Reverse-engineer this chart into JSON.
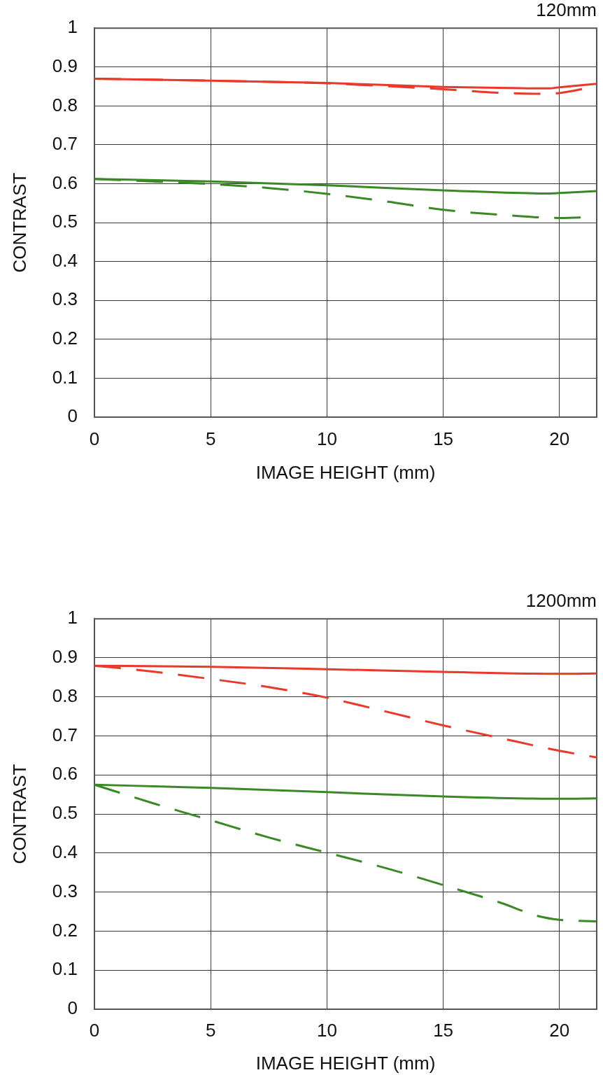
{
  "chart_data": [
    {
      "type": "line",
      "title": "120mm",
      "xlabel": "IMAGE HEIGHT (mm)",
      "ylabel": "CONTRAST",
      "xlim": [
        0,
        21.6
      ],
      "xticks": [
        0,
        5,
        10,
        15,
        20
      ],
      "ylim": [
        0,
        1
      ],
      "yticks": [
        0,
        0.1,
        0.2,
        0.3,
        0.4,
        0.5,
        0.6,
        0.7,
        0.8,
        0.9,
        1
      ],
      "grid": true,
      "marker": "none",
      "series": [
        {
          "color": "#e8392b",
          "line_style": "solid",
          "x": [
            0,
            5,
            10,
            15,
            18,
            19.5,
            20,
            21.6
          ],
          "values": [
            0.87,
            0.865,
            0.859,
            0.849,
            0.846,
            0.845,
            0.848,
            0.857
          ]
        },
        {
          "color": "#e8392b",
          "line_style": "dashed",
          "x": [
            0,
            5,
            10,
            12.5,
            15,
            17,
            19.5,
            20,
            21.6
          ],
          "values": [
            0.87,
            0.865,
            0.858,
            0.851,
            0.843,
            0.835,
            0.831,
            0.833,
            0.851
          ]
        },
        {
          "color": "#3a8826",
          "line_style": "solid",
          "x": [
            0,
            5,
            10,
            15,
            19.5,
            20,
            21.6
          ],
          "values": [
            0.612,
            0.606,
            0.596,
            0.583,
            0.575,
            0.576,
            0.581
          ]
        },
        {
          "color": "#3a8826",
          "line_style": "dashed",
          "x": [
            0,
            2.5,
            5,
            7.5,
            10,
            12.5,
            15,
            17.5,
            20,
            21.6
          ],
          "values": [
            0.612,
            0.606,
            0.599,
            0.589,
            0.574,
            0.555,
            0.533,
            0.52,
            0.512,
            0.515
          ]
        }
      ]
    },
    {
      "type": "line",
      "title": "1200mm",
      "xlabel": "IMAGE HEIGHT (mm)",
      "ylabel": "CONTRAST",
      "xlim": [
        0,
        21.6
      ],
      "xticks": [
        0,
        5,
        10,
        15,
        20
      ],
      "ylim": [
        0,
        1
      ],
      "yticks": [
        0,
        0.1,
        0.2,
        0.3,
        0.4,
        0.5,
        0.6,
        0.7,
        0.8,
        0.9,
        1
      ],
      "grid": true,
      "marker": "none",
      "series": [
        {
          "color": "#e8392b",
          "line_style": "solid",
          "x": [
            0,
            5,
            10,
            15,
            20,
            21.6
          ],
          "values": [
            0.88,
            0.877,
            0.871,
            0.864,
            0.859,
            0.86
          ]
        },
        {
          "color": "#e8392b",
          "line_style": "dashed",
          "x": [
            0,
            2.5,
            5,
            7.5,
            10,
            12.5,
            15,
            17.5,
            20,
            21.6
          ],
          "values": [
            0.88,
            0.865,
            0.846,
            0.825,
            0.798,
            0.763,
            0.727,
            0.694,
            0.662,
            0.645
          ]
        },
        {
          "color": "#3a8826",
          "line_style": "solid",
          "x": [
            0,
            5,
            10,
            15,
            20,
            21.6
          ],
          "values": [
            0.575,
            0.567,
            0.556,
            0.545,
            0.539,
            0.54
          ]
        },
        {
          "color": "#3a8826",
          "line_style": "dashed",
          "x": [
            0,
            2.5,
            5,
            7.5,
            10,
            12.5,
            15,
            17.5,
            19,
            20,
            21.6
          ],
          "values": [
            0.575,
            0.528,
            0.484,
            0.44,
            0.401,
            0.362,
            0.318,
            0.272,
            0.24,
            0.229,
            0.225
          ]
        }
      ]
    }
  ]
}
